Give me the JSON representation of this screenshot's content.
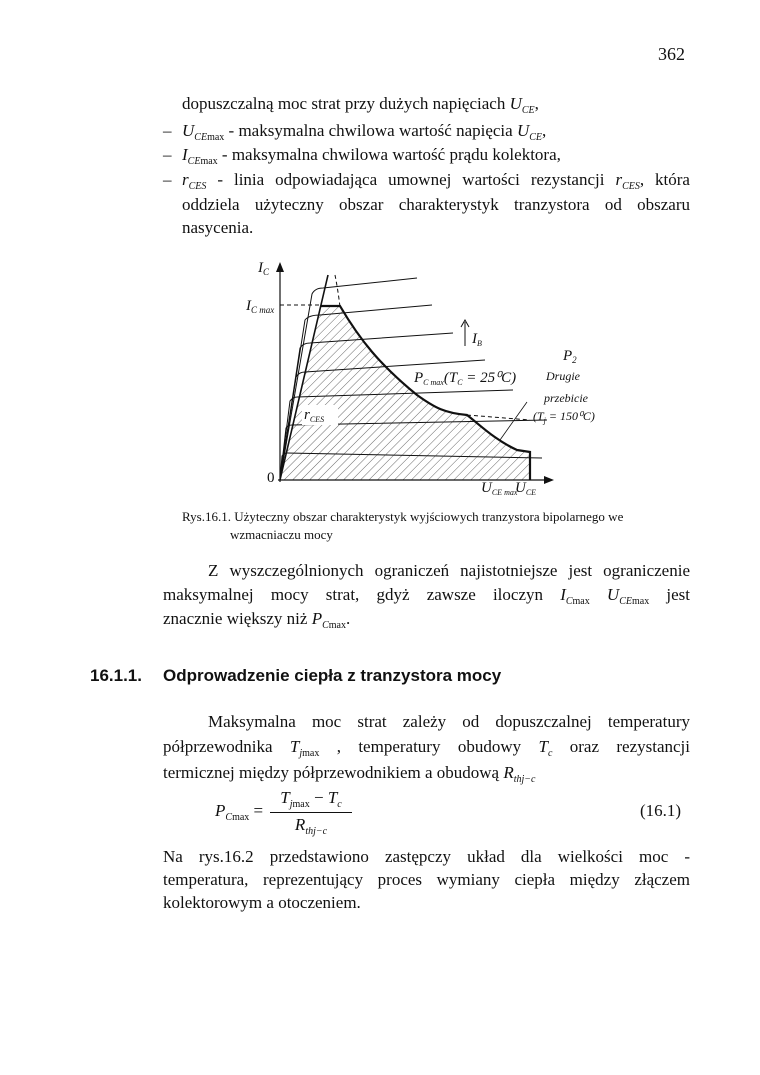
{
  "page_number": "362",
  "block1": [
    {
      "x": 182,
      "y": 94,
      "w": 0,
      "dash": false,
      "segs": [
        "dopuszczalną moc strat przy dużych napięciach ",
        {
          "v": "U",
          "s": "CE"
        },
        ","
      ]
    },
    {
      "x": 182,
      "y": 121,
      "w": 0,
      "dash": true,
      "segs": [
        {
          "v": "U",
          "s": "CE",
          "mx": "max"
        },
        " - maksymalna chwilowa wartość napięcia ",
        {
          "v": "U",
          "s": "CE"
        },
        ","
      ]
    },
    {
      "x": 182,
      "y": 145,
      "w": 0,
      "dash": true,
      "segs": [
        {
          "v": "I",
          "s": "CE",
          "mx": "max"
        },
        " -  maksymalna chwilowa wartość prądu kolektora,"
      ]
    },
    {
      "x": 182,
      "y": 170,
      "w": 508,
      "dash": true,
      "segs": [
        {
          "v": "r",
          "s": "CES"
        },
        " - linia odpowiadająca umownej wartości rezystancji  ",
        {
          "v": "r",
          "s": "CES"
        },
        ", która"
      ]
    },
    {
      "x": 182,
      "y": 195,
      "w": 508,
      "dash": false,
      "segs": [
        "oddziela użyteczny obszar charakterystyk tranzystora od obszaru"
      ]
    },
    {
      "x": 182,
      "y": 218,
      "w": 0,
      "dash": false,
      "segs": [
        "nasycenia."
      ]
    }
  ],
  "dash_symbol": "–",
  "figure": {
    "labels": {
      "ic": "I",
      "ic_sub": "C",
      "icmax": "I",
      "icmax_sub": "C max",
      "zero": "0",
      "ib": "I",
      "ib_sub": "B",
      "pcmax": "P",
      "pcmax_sub": "C max",
      "pcmax_cond": "(T",
      "pcmax_cond_sub": "C",
      "pcmax_cond_rest": " = 25⁰C)",
      "p2": "P",
      "p2_sub": "2",
      "drugie": "Drugie",
      "przebicie": "przebicie",
      "tj": "(T",
      "tj_sub": "j",
      "tj_rest": " = 150⁰C)",
      "rces": "r",
      "rces_sub": "CES",
      "ucemax": "U",
      "ucemax_sub": "CE max",
      "uce": "U",
      "uce_sub": "CE"
    },
    "caption": [
      "Rys.16.1. Użyteczny obszar charakterystyk wyjściowych tranzystora bipolarnego we",
      "wzmacniaczu mocy"
    ]
  },
  "para1": [
    {
      "x": 208,
      "y": 561,
      "w": 482,
      "segs": [
        "Z wyszczególnionych ograniczeń najistotniejsze jest ograniczenie"
      ]
    },
    {
      "x": 163,
      "y": 585,
      "w": 527,
      "segs": [
        "maksymalnej mocy strat, gdyż zawsze iloczyn ",
        {
          "v": "I",
          "s": "C",
          "mx": "max"
        },
        {
          "v": " U",
          "s": "CE",
          "mx": "max"
        },
        " jest"
      ]
    },
    {
      "x": 163,
      "y": 609,
      "w": 0,
      "segs": [
        "znacznie większy niż ",
        {
          "v": "P",
          "s": "C",
          "mx": "max"
        },
        "."
      ]
    }
  ],
  "section": {
    "number": "16.1.1.",
    "title": "Odprowadzenie ciepła z tranzystora mocy"
  },
  "para2": [
    {
      "x": 208,
      "y": 712,
      "w": 482,
      "segs": [
        "Maksymalna moc strat zależy od dopuszczalnej  temperatury"
      ]
    },
    {
      "x": 163,
      "y": 737,
      "w": 527,
      "segs": [
        "półprzewodnika  ",
        {
          "v": "T",
          "s": "j",
          "mx": "max"
        },
        " , temperatury obudowy ",
        {
          "v": "T",
          "s": "c"
        },
        " oraz rezystancji"
      ]
    },
    {
      "x": 163,
      "y": 763,
      "w": 0,
      "segs": [
        "termicznej między półprzewodnikiem a obudową ",
        {
          "v": "R",
          "s": "thj−c"
        }
      ]
    }
  ],
  "formula": {
    "lhs_v": "P",
    "lhs_s": "C",
    "lhs_mx": "max",
    "eq": "=",
    "num_a": "T",
    "num_a_s": "j",
    "num_a_mx": "max",
    "minus": " − ",
    "num_b": "T",
    "num_b_s": "c",
    "den": "R",
    "den_s": "thj−c",
    "number": "(16.1)"
  },
  "para3": [
    {
      "x": 163,
      "y": 847,
      "w": 527,
      "segs": [
        "Na rys.16.2 przedstawiono zastępczy układ  dla wielkości moc -"
      ]
    },
    {
      "x": 163,
      "y": 870,
      "w": 527,
      "segs": [
        "temperatura, reprezentujący proces wymiany ciepła między złączem"
      ]
    },
    {
      "x": 163,
      "y": 893,
      "w": 0,
      "segs": [
        "kolektorowym a otoczeniem."
      ]
    }
  ]
}
